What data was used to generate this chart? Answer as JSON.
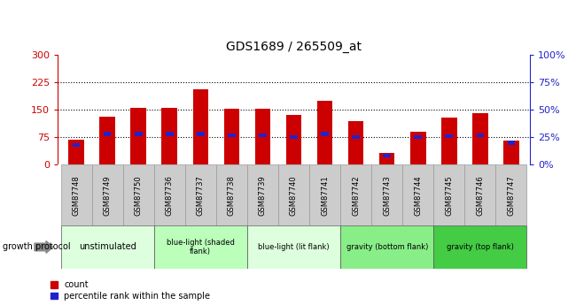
{
  "title": "GDS1689 / 265509_at",
  "samples": [
    "GSM87748",
    "GSM87749",
    "GSM87750",
    "GSM87736",
    "GSM87737",
    "GSM87738",
    "GSM87739",
    "GSM87740",
    "GSM87741",
    "GSM87742",
    "GSM87743",
    "GSM87744",
    "GSM87745",
    "GSM87746",
    "GSM87747"
  ],
  "counts": [
    68,
    130,
    155,
    155,
    205,
    153,
    153,
    135,
    175,
    120,
    32,
    90,
    128,
    142,
    65
  ],
  "percentile_ranks": [
    18,
    28,
    28,
    28,
    28,
    27,
    27,
    25,
    28,
    25,
    8,
    25,
    26,
    27,
    20
  ],
  "groups": [
    {
      "label": "unstimulated",
      "start": 0,
      "end": 3,
      "color": "#ddffdd"
    },
    {
      "label": "blue-light (shaded\nflank)",
      "start": 3,
      "end": 6,
      "color": "#bbffbb"
    },
    {
      "label": "blue-light (lit flank)",
      "start": 6,
      "end": 9,
      "color": "#ddffdd"
    },
    {
      "label": "gravity (bottom flank)",
      "start": 9,
      "end": 12,
      "color": "#88ee88"
    },
    {
      "label": "gravity (top flank)",
      "start": 12,
      "end": 15,
      "color": "#44cc44"
    }
  ],
  "ylim_left": [
    0,
    300
  ],
  "ylim_right": [
    0,
    100
  ],
  "yticks_left": [
    0,
    75,
    150,
    225,
    300
  ],
  "yticks_right": [
    0,
    25,
    50,
    75,
    100
  ],
  "ytick_labels_left": [
    "0",
    "75",
    "150",
    "225",
    "300"
  ],
  "ytick_labels_right": [
    "0%",
    "25%",
    "50%",
    "75%",
    "100%"
  ],
  "bar_color": "#cc0000",
  "percentile_color": "#2222cc",
  "background_color": "#ffffff",
  "plot_bg_color": "#ffffff",
  "label_area_color": "#cccccc",
  "bar_width": 0.5,
  "percentile_bar_width": 0.25,
  "grid_lines": [
    75,
    150,
    225
  ],
  "growth_protocol_label": "growth protocol",
  "legend_count_label": "count",
  "legend_pct_label": "percentile rank within the sample"
}
